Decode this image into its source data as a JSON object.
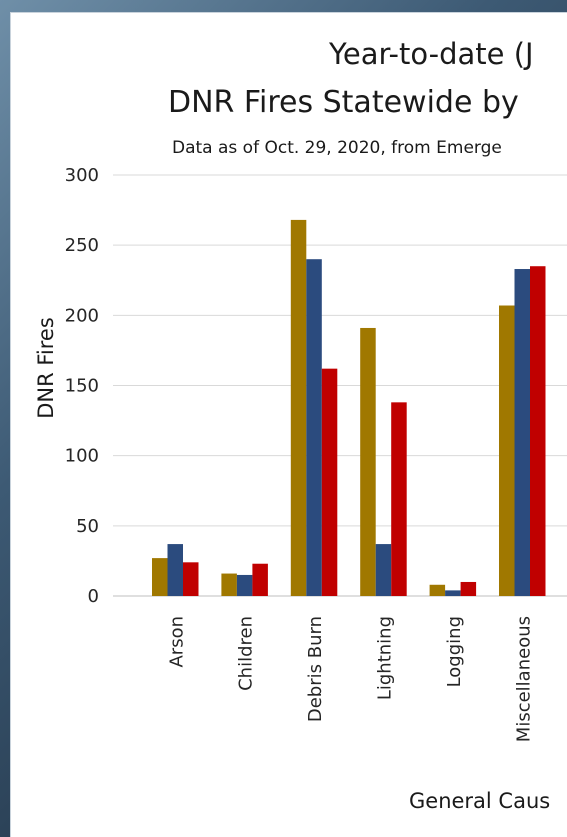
{
  "chart_data": {
    "type": "bar",
    "title": "Year-to-date (J",
    "subtitle": "DNR Fires Statewide by",
    "note": "Data as of Oct. 29, 2020, from Emerge",
    "xlabel": "General Caus",
    "ylabel": "DNR Fires",
    "ylim": [
      0,
      300
    ],
    "yticks": [
      0,
      50,
      100,
      150,
      200,
      250,
      300
    ],
    "grid": true,
    "categories": [
      "Arson",
      "Children",
      "Debris Burn",
      "Lightning",
      "Logging",
      "Miscellaneous"
    ],
    "series": [
      {
        "color": "#a07800",
        "values": [
          27,
          16,
          268,
          191,
          8,
          207
        ]
      },
      {
        "color": "#2b4b7e",
        "values": [
          37,
          15,
          240,
          37,
          4,
          233
        ]
      },
      {
        "color": "#c00000",
        "values": [
          24,
          23,
          162,
          138,
          10,
          235
        ]
      }
    ]
  }
}
